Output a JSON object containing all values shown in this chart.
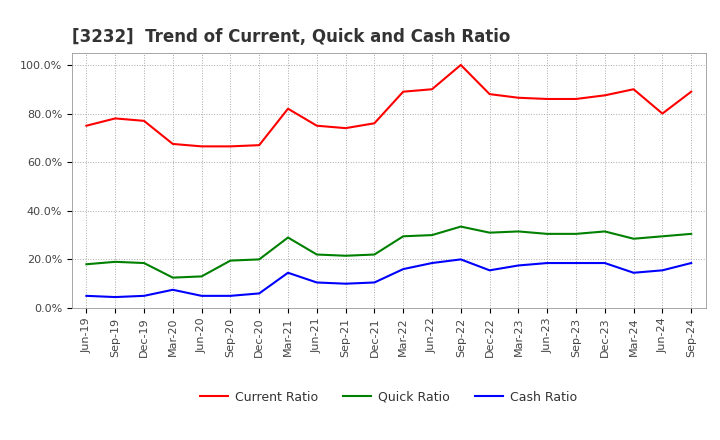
{
  "title": "[3232]  Trend of Current, Quick and Cash Ratio",
  "x_labels": [
    "Jun-19",
    "Sep-19",
    "Dec-19",
    "Mar-20",
    "Jun-20",
    "Sep-20",
    "Dec-20",
    "Mar-21",
    "Jun-21",
    "Sep-21",
    "Dec-21",
    "Mar-22",
    "Jun-22",
    "Sep-22",
    "Dec-22",
    "Mar-23",
    "Jun-23",
    "Sep-23",
    "Dec-23",
    "Mar-24",
    "Jun-24",
    "Sep-24"
  ],
  "current_ratio": [
    75.0,
    78.0,
    77.0,
    67.5,
    66.5,
    66.5,
    67.0,
    82.0,
    75.0,
    74.0,
    76.0,
    89.0,
    90.0,
    100.0,
    88.0,
    86.5,
    86.0,
    86.0,
    87.5,
    90.0,
    80.0,
    89.0
  ],
  "quick_ratio": [
    18.0,
    19.0,
    18.5,
    12.5,
    13.0,
    19.5,
    20.0,
    29.0,
    22.0,
    21.5,
    22.0,
    29.5,
    30.0,
    33.5,
    31.0,
    31.5,
    30.5,
    30.5,
    31.5,
    28.5,
    29.5,
    30.5
  ],
  "cash_ratio": [
    5.0,
    4.5,
    5.0,
    7.5,
    5.0,
    5.0,
    6.0,
    14.5,
    10.5,
    10.0,
    10.5,
    16.0,
    18.5,
    20.0,
    15.5,
    17.5,
    18.5,
    18.5,
    18.5,
    14.5,
    15.5,
    18.5
  ],
  "current_color": "#ff0000",
  "quick_color": "#008000",
  "cash_color": "#0000ff",
  "bg_color": "#ffffff",
  "plot_bg_color": "#ffffff",
  "grid_color": "#aaaaaa",
  "ylim": [
    0,
    105
  ],
  "yticks": [
    0,
    20,
    40,
    60,
    80,
    100
  ],
  "ytick_labels": [
    "0.0%",
    "20.0%",
    "40.0%",
    "60.0%",
    "80.0%",
    "100.0%"
  ],
  "legend_labels": [
    "Current Ratio",
    "Quick Ratio",
    "Cash Ratio"
  ],
  "title_fontsize": 12,
  "axis_fontsize": 8,
  "legend_fontsize": 9
}
